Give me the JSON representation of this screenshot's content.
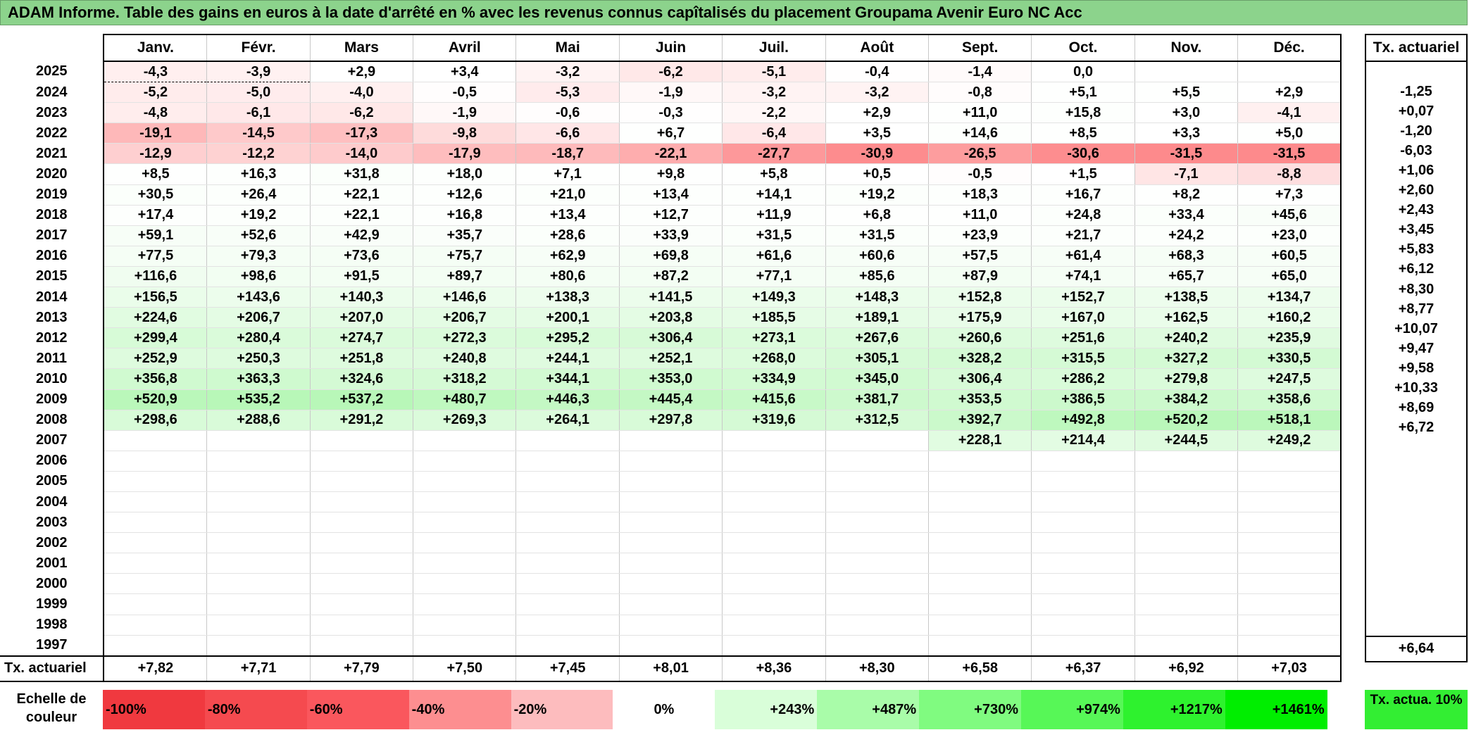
{
  "title": "ADAM Informe. Table des gains en euros à la date d'arrêté en % avec les revenus connus capîtalisés du placement Groupama Avenir Euro NC Acc",
  "months": [
    "Janv.",
    "Févr.",
    "Mars",
    "Avril",
    "Mai",
    "Juin",
    "Juil.",
    "Août",
    "Sept.",
    "Oct.",
    "Nov.",
    "Déc."
  ],
  "tx_header": "Tx. actuariel",
  "rows": [
    {
      "year": "2025",
      "values": [
        "-4,3",
        "-3,9",
        "+2,9",
        "+3,4",
        "-3,2",
        "-6,2",
        "-5,1",
        "-0,4",
        "-1,4",
        "0,0",
        "",
        ""
      ],
      "tx": ""
    },
    {
      "year": "2024",
      "values": [
        "-5,2",
        "-5,0",
        "-4,0",
        "-0,5",
        "-5,3",
        "-1,9",
        "-3,2",
        "-3,2",
        "-0,8",
        "+5,1",
        "+5,5",
        "+2,9"
      ],
      "tx": "-1,25"
    },
    {
      "year": "2023",
      "values": [
        "-4,8",
        "-6,1",
        "-6,2",
        "-1,9",
        "-0,6",
        "-0,3",
        "-2,2",
        "+2,9",
        "+11,0",
        "+15,8",
        "+3,0",
        "-4,1"
      ],
      "tx": "+0,07"
    },
    {
      "year": "2022",
      "values": [
        "-19,1",
        "-14,5",
        "-17,3",
        "-9,8",
        "-6,6",
        "+6,7",
        "-6,4",
        "+3,5",
        "+14,6",
        "+8,5",
        "+3,3",
        "+5,0"
      ],
      "tx": "-1,20"
    },
    {
      "year": "2021",
      "values": [
        "-12,9",
        "-12,2",
        "-14,0",
        "-17,9",
        "-18,7",
        "-22,1",
        "-27,7",
        "-30,9",
        "-26,5",
        "-30,6",
        "-31,5",
        "-31,5"
      ],
      "tx": "-6,03"
    },
    {
      "year": "2020",
      "values": [
        "+8,5",
        "+16,3",
        "+31,8",
        "+18,0",
        "+7,1",
        "+9,8",
        "+5,8",
        "+0,5",
        "-0,5",
        "+1,5",
        "-7,1",
        "-8,8"
      ],
      "tx": "+1,06"
    },
    {
      "year": "2019",
      "values": [
        "+30,5",
        "+26,4",
        "+22,1",
        "+12,6",
        "+21,0",
        "+13,4",
        "+14,1",
        "+19,2",
        "+18,3",
        "+16,7",
        "+8,2",
        "+7,3"
      ],
      "tx": "+2,60"
    },
    {
      "year": "2018",
      "values": [
        "+17,4",
        "+19,2",
        "+22,1",
        "+16,8",
        "+13,4",
        "+12,7",
        "+11,9",
        "+6,8",
        "+11,0",
        "+24,8",
        "+33,4",
        "+45,6"
      ],
      "tx": "+2,43"
    },
    {
      "year": "2017",
      "values": [
        "+59,1",
        "+52,6",
        "+42,9",
        "+35,7",
        "+28,6",
        "+33,9",
        "+31,5",
        "+31,5",
        "+23,9",
        "+21,7",
        "+24,2",
        "+23,0"
      ],
      "tx": "+3,45"
    },
    {
      "year": "2016",
      "values": [
        "+77,5",
        "+79,3",
        "+73,6",
        "+75,7",
        "+62,9",
        "+69,8",
        "+61,6",
        "+60,6",
        "+57,5",
        "+61,4",
        "+68,3",
        "+60,5"
      ],
      "tx": "+5,83"
    },
    {
      "year": "2015",
      "values": [
        "+116,6",
        "+98,6",
        "+91,5",
        "+89,7",
        "+80,6",
        "+87,2",
        "+77,1",
        "+85,6",
        "+87,9",
        "+74,1",
        "+65,7",
        "+65,0"
      ],
      "tx": "+6,12"
    },
    {
      "year": "2014",
      "values": [
        "+156,5",
        "+143,6",
        "+140,3",
        "+146,6",
        "+138,3",
        "+141,5",
        "+149,3",
        "+148,3",
        "+152,8",
        "+152,7",
        "+138,5",
        "+134,7"
      ],
      "tx": "+8,30"
    },
    {
      "year": "2013",
      "values": [
        "+224,6",
        "+206,7",
        "+207,0",
        "+206,7",
        "+200,1",
        "+203,8",
        "+185,5",
        "+189,1",
        "+175,9",
        "+167,0",
        "+162,5",
        "+160,2"
      ],
      "tx": "+8,77"
    },
    {
      "year": "2012",
      "values": [
        "+299,4",
        "+280,4",
        "+274,7",
        "+272,3",
        "+295,2",
        "+306,4",
        "+273,1",
        "+267,6",
        "+260,6",
        "+251,6",
        "+240,2",
        "+235,9"
      ],
      "tx": "+10,07"
    },
    {
      "year": "2011",
      "values": [
        "+252,9",
        "+250,3",
        "+251,8",
        "+240,8",
        "+244,1",
        "+252,1",
        "+268,0",
        "+305,1",
        "+328,2",
        "+315,5",
        "+327,2",
        "+330,5"
      ],
      "tx": "+9,47"
    },
    {
      "year": "2010",
      "values": [
        "+356,8",
        "+363,3",
        "+324,6",
        "+318,2",
        "+344,1",
        "+353,0",
        "+334,9",
        "+345,0",
        "+306,4",
        "+286,2",
        "+279,8",
        "+247,5"
      ],
      "tx": "+9,58"
    },
    {
      "year": "2009",
      "values": [
        "+520,9",
        "+535,2",
        "+537,2",
        "+480,7",
        "+446,3",
        "+445,4",
        "+415,6",
        "+381,7",
        "+353,5",
        "+386,5",
        "+384,2",
        "+358,6"
      ],
      "tx": "+10,33"
    },
    {
      "year": "2008",
      "values": [
        "+298,6",
        "+288,6",
        "+291,2",
        "+269,3",
        "+264,1",
        "+297,8",
        "+319,6",
        "+312,5",
        "+392,7",
        "+492,8",
        "+520,2",
        "+518,1"
      ],
      "tx": "+8,69"
    },
    {
      "year": "2007",
      "values": [
        "",
        "",
        "",
        "",
        "",
        "",
        "",
        "",
        "+228,1",
        "+214,4",
        "+244,5",
        "+249,2"
      ],
      "tx": "+6,72"
    },
    {
      "year": "2006",
      "values": [
        "",
        "",
        "",
        "",
        "",
        "",
        "",
        "",
        "",
        "",
        "",
        ""
      ],
      "tx": ""
    },
    {
      "year": "2005",
      "values": [
        "",
        "",
        "",
        "",
        "",
        "",
        "",
        "",
        "",
        "",
        "",
        ""
      ],
      "tx": ""
    },
    {
      "year": "2004",
      "values": [
        "",
        "",
        "",
        "",
        "",
        "",
        "",
        "",
        "",
        "",
        "",
        ""
      ],
      "tx": ""
    },
    {
      "year": "2003",
      "values": [
        "",
        "",
        "",
        "",
        "",
        "",
        "",
        "",
        "",
        "",
        "",
        ""
      ],
      "tx": ""
    },
    {
      "year": "2002",
      "values": [
        "",
        "",
        "",
        "",
        "",
        "",
        "",
        "",
        "",
        "",
        "",
        ""
      ],
      "tx": ""
    },
    {
      "year": "2001",
      "values": [
        "",
        "",
        "",
        "",
        "",
        "",
        "",
        "",
        "",
        "",
        "",
        ""
      ],
      "tx": ""
    },
    {
      "year": "2000",
      "values": [
        "",
        "",
        "",
        "",
        "",
        "",
        "",
        "",
        "",
        "",
        "",
        ""
      ],
      "tx": ""
    },
    {
      "year": "1999",
      "values": [
        "",
        "",
        "",
        "",
        "",
        "",
        "",
        "",
        "",
        "",
        "",
        ""
      ],
      "tx": ""
    },
    {
      "year": "1998",
      "values": [
        "",
        "",
        "",
        "",
        "",
        "",
        "",
        "",
        "",
        "",
        "",
        ""
      ],
      "tx": ""
    },
    {
      "year": "1997",
      "values": [
        "",
        "",
        "",
        "",
        "",
        "",
        "",
        "",
        "",
        "",
        "",
        ""
      ],
      "tx": ""
    }
  ],
  "footer": {
    "label": "Tx. actuariel",
    "values": [
      "+7,82",
      "+7,71",
      "+7,79",
      "+7,50",
      "+7,45",
      "+8,01",
      "+8,36",
      "+8,30",
      "+6,58",
      "+6,37",
      "+6,92",
      "+7,03"
    ],
    "tx": "+6,64"
  },
  "scale": {
    "label": "Echelle de couleur",
    "items": [
      {
        "label": "-100%",
        "color": "#f0393f"
      },
      {
        "label": "-80%",
        "color": "#f54a4f"
      },
      {
        "label": "-60%",
        "color": "#fa575d"
      },
      {
        "label": "-40%",
        "color": "#fd8e90"
      },
      {
        "label": "-20%",
        "color": "#fdbcbe"
      },
      {
        "label": "0%",
        "color": "#ffffff"
      },
      {
        "label": "+243%",
        "color": "#d9fed9"
      },
      {
        "label": "+487%",
        "color": "#a9fca9"
      },
      {
        "label": "+730%",
        "color": "#80fb80"
      },
      {
        "label": "+974%",
        "color": "#57f757"
      },
      {
        "label": "+1217%",
        "color": "#2ef22e"
      },
      {
        "label": "+1461%",
        "color": "#00ee00"
      }
    ],
    "tx_label": "Tx. actua. 10%",
    "tx_color": "#33ee33"
  },
  "colors": {
    "title_bg": "#8cd38c",
    "neg_max": "#fd8a8c",
    "pos_max": "#b8f7b8"
  }
}
